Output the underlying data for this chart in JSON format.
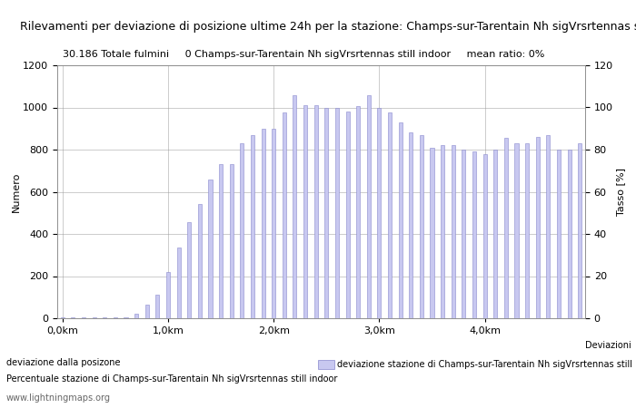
{
  "title": "Rilevamenti per deviazione di posizione ultime 24h per la stazione: Champs-sur-Tarentain Nh sigVrsrtennas still indoor",
  "subtitle": "30.186 Totale fulmini     0 Champs-sur-Tarentain Nh sigVrsrtennas still indoor     mean ratio: 0%",
  "ylabel_left": "Numero",
  "ylabel_right": "Tasso [%]",
  "xlabel": "Deviazioni",
  "xlabel_bottom": "deviazione dalla posizone",
  "legend_label": "deviazione stazione di Champs-sur-Tarentain Nh sigVrsrtennas still in",
  "footer_left": "Percentuale stazione di Champs-sur-Tarentain Nh sigVrsrtennas still indoor",
  "footer_right": "www.lightningmaps.org",
  "xlim": [
    0,
    50
  ],
  "ylim_left": [
    0,
    1200
  ],
  "ylim_right": [
    0,
    120
  ],
  "xtick_positions": [
    0,
    10,
    20,
    30,
    40
  ],
  "xtick_labels": [
    "0,0km",
    "1,0km",
    "2,0km",
    "3,0km",
    "4,0km"
  ],
  "ytick_left": [
    0,
    200,
    400,
    600,
    800,
    1000,
    1200
  ],
  "ytick_right": [
    0,
    20,
    40,
    60,
    80,
    100,
    120
  ],
  "bar_color": "#c8c8f0",
  "bar_edge_color": "#8888cc",
  "bg_color": "#ffffff",
  "grid_color": "#999999",
  "bar_values": [
    3,
    3,
    3,
    3,
    3,
    3,
    3,
    20,
    65,
    110,
    220,
    335,
    455,
    540,
    660,
    730,
    730,
    830,
    870,
    900,
    900,
    975,
    1060,
    1010,
    1010,
    1000,
    1000,
    980,
    1005,
    1060,
    1000,
    975,
    930,
    880,
    870,
    810,
    820,
    820,
    800,
    790,
    780,
    800,
    855,
    830,
    830,
    860,
    870,
    800,
    800,
    830
  ],
  "title_fontsize": 9,
  "axis_fontsize": 8,
  "tick_fontsize": 8,
  "subtitle_fontsize": 8
}
